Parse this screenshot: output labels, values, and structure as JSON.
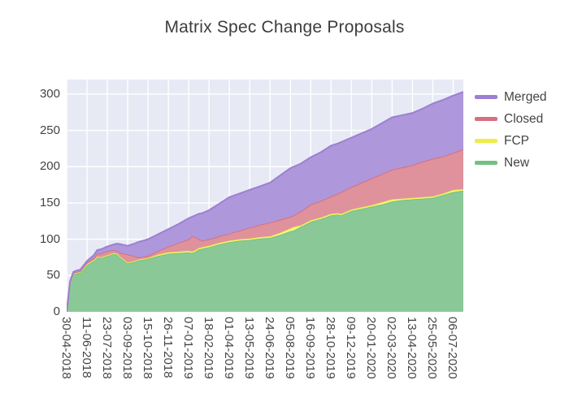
{
  "title": "Matrix Spec Change Proposals",
  "plot": {
    "background": "#e7eaf4",
    "grid_color": "#ffffff",
    "text_color": "#444444"
  },
  "legend": {
    "items": [
      {
        "label": "Merged",
        "color": "#9c7fd2"
      },
      {
        "label": "Closed",
        "color": "#d6707f"
      },
      {
        "label": "FCP",
        "color": "#eded45"
      },
      {
        "label": "New",
        "color": "#74c083"
      }
    ]
  },
  "chart_data": {
    "type": "area",
    "stacked": true,
    "title": "Matrix Spec Change Proposals",
    "xlabel": "",
    "ylabel": "",
    "grid": true,
    "legend_position": "right",
    "xlim": [
      0,
      117
    ],
    "ylim": [
      0,
      320
    ],
    "y_ticks": [
      0,
      50,
      100,
      150,
      200,
      250,
      300
    ],
    "x_unit": "weeks-since-first-date",
    "x_tick_weeks": [
      0,
      6,
      12,
      18,
      24,
      30,
      36,
      42,
      48,
      54,
      60,
      66,
      72,
      78,
      84,
      90,
      96,
      102,
      108,
      114
    ],
    "x_tick_labels": [
      "30-04-2018",
      "11-06-2018",
      "23-07-2018",
      "03-09-2018",
      "15-10-2018",
      "26-11-2018",
      "07-01-2019",
      "18-02-2019",
      "01-04-2019",
      "13-05-2019",
      "24-06-2019",
      "05-08-2019",
      "16-09-2019",
      "28-10-2019",
      "09-12-2019",
      "20-01-2020",
      "02-03-2020",
      "13-04-2020",
      "25-05-2020",
      "06-07-2020"
    ],
    "x": [
      0,
      1,
      2,
      3,
      4,
      6,
      8,
      9,
      10,
      12,
      14,
      15,
      16,
      18,
      20,
      21,
      24,
      27,
      30,
      33,
      36,
      37,
      38,
      39,
      40,
      42,
      45,
      48,
      51,
      54,
      57,
      60,
      63,
      66,
      67,
      69,
      72,
      75,
      78,
      80,
      81,
      84,
      87,
      90,
      93,
      96,
      99,
      102,
      105,
      108,
      111,
      114,
      117
    ],
    "series": [
      {
        "name": "New",
        "color": "#74c083",
        "fill": "#8ac898",
        "values": [
          0,
          40,
          52,
          53,
          54,
          65,
          70,
          75,
          74,
          77,
          80,
          79,
          74,
          67,
          69,
          71,
          73,
          77,
          80,
          81,
          82,
          81,
          83,
          86,
          87,
          89,
          93,
          96,
          98,
          99,
          101,
          102,
          106,
          111,
          112,
          117,
          124,
          128,
          133,
          134,
          133,
          139,
          142,
          145,
          148,
          152,
          154,
          155,
          156,
          157,
          161,
          165,
          167
        ]
      },
      {
        "name": "FCP",
        "color": "#eded45",
        "fill": "#f5f580",
        "values": [
          0,
          0,
          1,
          1,
          1,
          1,
          1,
          1,
          1,
          1,
          1,
          1,
          1,
          1,
          1,
          1,
          1,
          2,
          2,
          2,
          2,
          2,
          2,
          2,
          2,
          2,
          2,
          2,
          2,
          2,
          2,
          2,
          3,
          4,
          5,
          2,
          2,
          2,
          2,
          2,
          2,
          2,
          2,
          2,
          3,
          3,
          2,
          2,
          2,
          2,
          2,
          3,
          2
        ]
      },
      {
        "name": "Closed",
        "color": "#d6707f",
        "fill": "#df929c",
        "values": [
          0,
          1,
          1,
          1,
          1,
          2,
          3,
          4,
          5,
          6,
          4,
          4,
          6,
          11,
          7,
          3,
          3,
          5,
          8,
          12,
          16,
          21,
          18,
          12,
          9,
          9,
          9,
          10,
          12,
          15,
          17,
          19,
          18,
          16,
          16,
          19,
          22,
          23,
          24,
          27,
          30,
          31,
          34,
          37,
          39,
          41,
          43,
          45,
          49,
          52,
          51,
          51,
          55
        ]
      },
      {
        "name": "Merged",
        "color": "#9c7fd2",
        "fill": "#af97db",
        "values": [
          0,
          1,
          1,
          2,
          2,
          2,
          4,
          5,
          6,
          6,
          8,
          10,
          12,
          12,
          17,
          21,
          23,
          23,
          24,
          26,
          29,
          27,
          30,
          35,
          38,
          40,
          45,
          50,
          51,
          52,
          53,
          55,
          61,
          67,
          67,
          66,
          65,
          67,
          70,
          69,
          69,
          68,
          68,
          68,
          70,
          72,
          72,
          72,
          73,
          76,
          78,
          79,
          79
        ]
      }
    ]
  }
}
